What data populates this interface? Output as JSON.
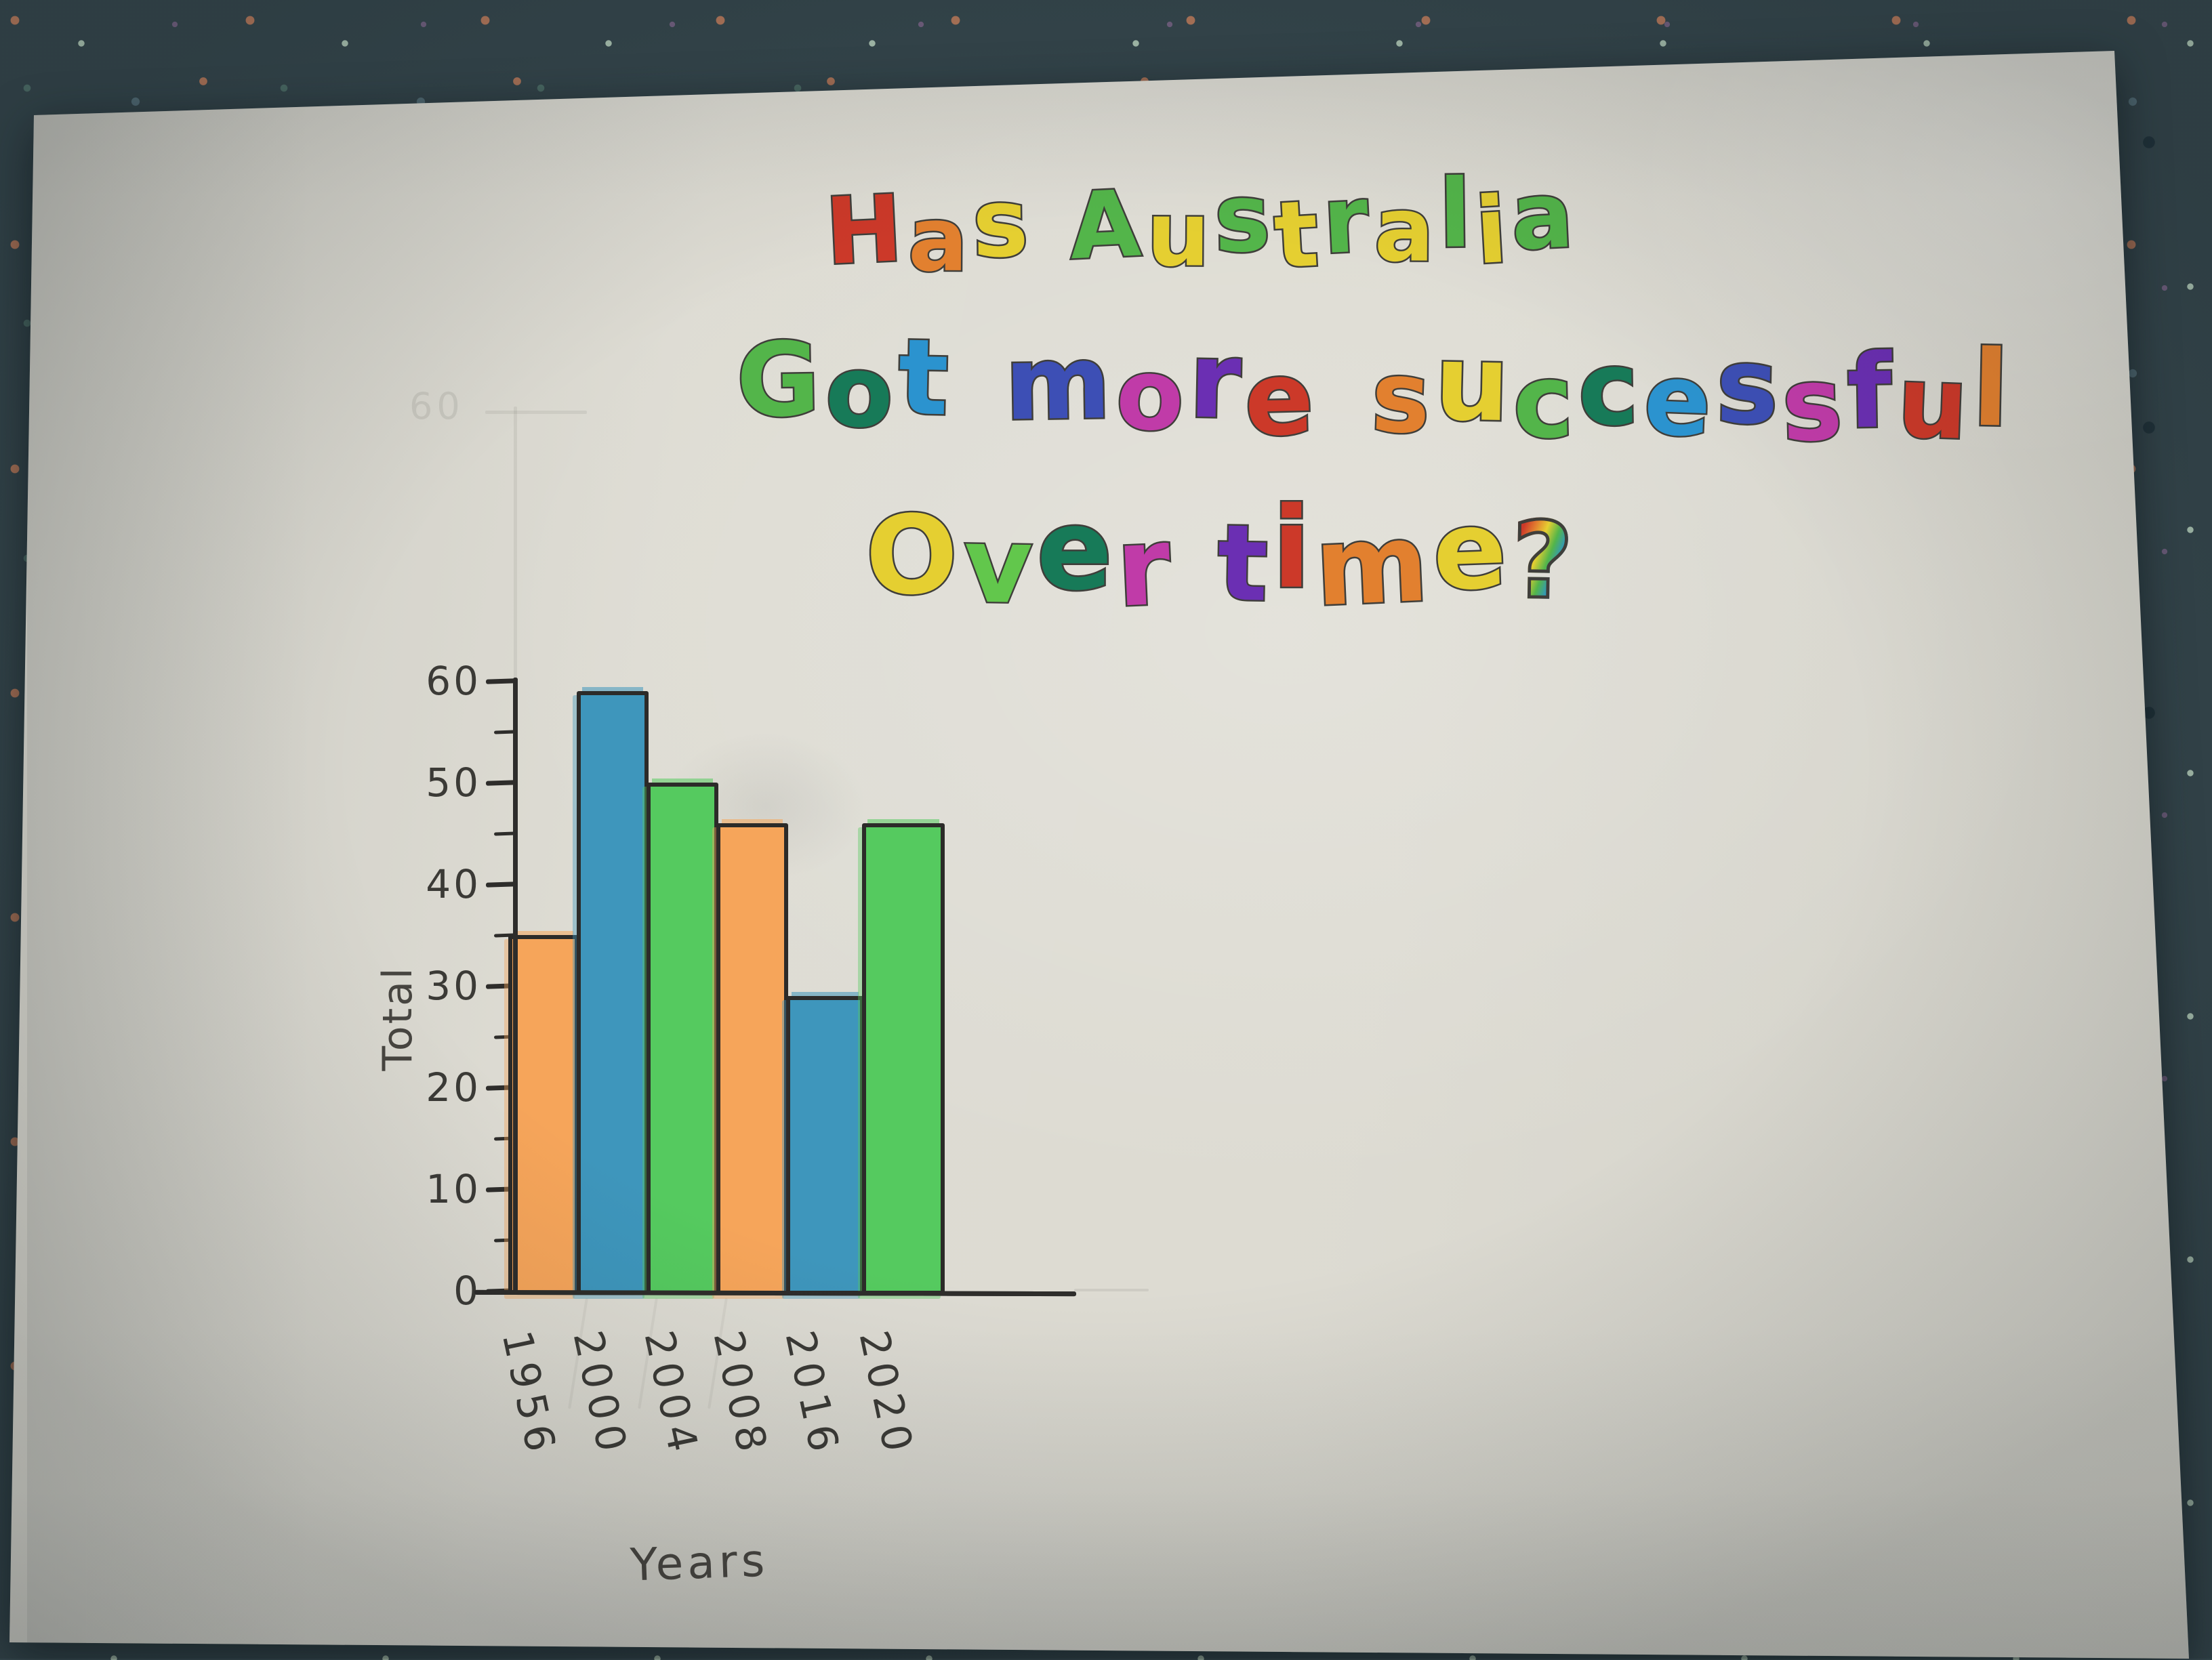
{
  "scene": {
    "description": "Child's hand-drawn bar chart on white paper, photographed on speckled blue-grey carpet",
    "paper_color": "#dcdad1",
    "carpet_base": "#35464c",
    "ink_color": "#2e2d2b",
    "pencil_color": "#8b8b83"
  },
  "title": {
    "full_text": "Has Australia Got more successful Over time ?",
    "lines": [
      {
        "text": "Has Australia",
        "letters": [
          [
            "H",
            "#cc3929"
          ],
          [
            "a",
            "#e2802f"
          ],
          [
            "s",
            "#e5cf31"
          ],
          [
            " ",
            ""
          ],
          [
            "A",
            "#53b54a"
          ],
          [
            "u",
            "#e5cf31"
          ],
          [
            "s",
            "#53b54a"
          ],
          [
            "t",
            "#e5cf31"
          ],
          [
            "r",
            "#53b54a"
          ],
          [
            "a",
            "#e5cf31"
          ],
          [
            "l",
            "#53b54a"
          ],
          [
            "i",
            "#e5cf31"
          ],
          [
            "a",
            "#53b54a"
          ]
        ]
      },
      {
        "text": "Got more successful",
        "letters": [
          [
            "G",
            "#53b54a"
          ],
          [
            "o",
            "#177a58"
          ],
          [
            "t",
            "#2b93cf"
          ],
          [
            " ",
            ""
          ],
          [
            "m",
            "#3d4fb5"
          ],
          [
            "o",
            "#c03ba8"
          ],
          [
            "r",
            "#6b2fb3"
          ],
          [
            "e",
            "#cc3929"
          ],
          [
            " ",
            ""
          ],
          [
            "s",
            "#e2802f"
          ],
          [
            "u",
            "#e5cf31"
          ],
          [
            "c",
            "#53b54a"
          ],
          [
            "c",
            "#177a58"
          ],
          [
            "e",
            "#2b93cf"
          ],
          [
            "s",
            "#3d4fb5"
          ],
          [
            "s",
            "#c03ba8"
          ],
          [
            "f",
            "#6b2fb3"
          ],
          [
            "u",
            "#cc3929"
          ],
          [
            "l",
            "#e2802f"
          ]
        ]
      },
      {
        "text": "Over time?",
        "letters": [
          [
            "O",
            "#e5cf31"
          ],
          [
            "v",
            "#62c74c"
          ],
          [
            "e",
            "#177a58"
          ],
          [
            "r",
            "#c03ba8"
          ],
          [
            " ",
            ""
          ],
          [
            "t",
            "#6b2fb3"
          ],
          [
            "i",
            "#cc3929"
          ],
          [
            "m",
            "#e2802f"
          ],
          [
            "e",
            "#e5cf31"
          ],
          [
            "?",
            "rainbow"
          ]
        ]
      }
    ]
  },
  "chart_data": {
    "type": "bar",
    "title": "Has Australia Got more successful Over time?",
    "categories": [
      "1956",
      "2000",
      "2004",
      "2008",
      "2016",
      "2020"
    ],
    "values": [
      35,
      59,
      50,
      46,
      29,
      46
    ],
    "bar_colors": [
      "#f6a55a",
      "#3e96bc",
      "#55ca5f",
      "#f6a55a",
      "#3e96bc",
      "#55ca5f"
    ],
    "xlabel": "Years",
    "ylabel": "Total",
    "ylim": [
      0,
      60
    ],
    "ytick_step": 10,
    "yminor_step": 5,
    "ytick_labels": [
      "0",
      "10",
      "20",
      "30",
      "40",
      "50",
      "60"
    ],
    "grid": false,
    "legend": false
  },
  "axis": {
    "faint_top_label": "60"
  }
}
